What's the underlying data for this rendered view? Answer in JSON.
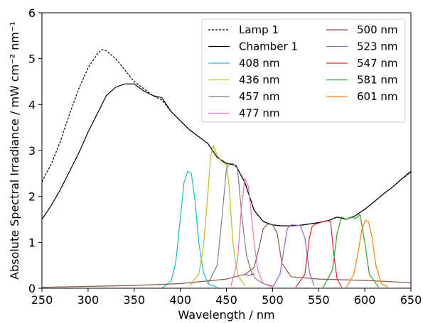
{
  "chart_data": {
    "type": "line",
    "xlabel": "Wavelength / nm",
    "ylabel": "Absolute Spectral Irradiance / mW cm⁻² nm⁻¹",
    "xlim": [
      250,
      650
    ],
    "ylim": [
      0,
      6
    ],
    "xticks": [
      250,
      300,
      350,
      400,
      450,
      500,
      550,
      600,
      650
    ],
    "yticks": [
      0,
      1,
      2,
      3,
      4,
      5,
      6
    ],
    "legend": {
      "placement": "top-right",
      "columns": 2
    },
    "series": [
      {
        "name": "Lamp 1",
        "color": "#000000",
        "dash": true,
        "x": [
          250,
          260,
          270,
          280,
          290,
          300,
          310,
          315,
          320,
          330,
          340,
          350,
          360,
          370,
          380,
          390,
          400,
          410,
          420,
          430,
          440,
          450,
          460,
          470,
          480,
          490,
          500,
          510,
          520,
          530,
          540,
          550,
          560,
          570,
          580,
          590,
          600,
          610,
          620,
          630,
          640,
          650
        ],
        "y": [
          2.32,
          2.7,
          3.2,
          3.8,
          4.35,
          4.8,
          5.1,
          5.2,
          5.17,
          5.0,
          4.75,
          4.5,
          4.35,
          4.2,
          4.1,
          3.85,
          3.65,
          3.45,
          3.3,
          3.15,
          2.85,
          2.72,
          2.68,
          2.3,
          1.7,
          1.45,
          1.38,
          1.36,
          1.36,
          1.37,
          1.4,
          1.43,
          1.47,
          1.55,
          1.5,
          1.58,
          1.72,
          1.88,
          2.05,
          2.2,
          2.38,
          2.52
        ]
      },
      {
        "name": "Chamber 1",
        "color": "#000000",
        "dash": false,
        "x": [
          250,
          260,
          270,
          280,
          290,
          300,
          310,
          320,
          330,
          340,
          350,
          360,
          370,
          380,
          390,
          400,
          410,
          420,
          430,
          440,
          450,
          460,
          470,
          480,
          490,
          500,
          510,
          520,
          530,
          540,
          550,
          560,
          570,
          580,
          590,
          600,
          610,
          620,
          630,
          640,
          650
        ],
        "y": [
          1.5,
          1.8,
          2.15,
          2.55,
          2.95,
          3.4,
          3.8,
          4.2,
          4.38,
          4.45,
          4.45,
          4.3,
          4.2,
          4.15,
          3.85,
          3.65,
          3.45,
          3.3,
          3.15,
          2.85,
          2.72,
          2.68,
          2.3,
          1.7,
          1.45,
          1.38,
          1.36,
          1.36,
          1.37,
          1.4,
          1.43,
          1.47,
          1.55,
          1.5,
          1.58,
          1.72,
          1.88,
          2.05,
          2.2,
          2.38,
          2.55
        ]
      },
      {
        "name": "408 nm",
        "color": "#17becf",
        "x": [
          380,
          390,
          395,
          400,
          404,
          408,
          412,
          416,
          420,
          425,
          430,
          440
        ],
        "y": [
          0.0,
          0.15,
          0.55,
          1.5,
          2.3,
          2.55,
          2.5,
          1.9,
          1.0,
          0.35,
          0.1,
          0.02
        ]
      },
      {
        "name": "436 nm",
        "color": "#bcbd22",
        "x": [
          410,
          420,
          425,
          430,
          433,
          436,
          440,
          445,
          450,
          453,
          457,
          462,
          470
        ],
        "y": [
          0.05,
          0.3,
          0.9,
          2.1,
          2.9,
          3.1,
          2.9,
          2.75,
          2.7,
          2.2,
          1.0,
          0.3,
          0.05
        ]
      },
      {
        "name": "457 nm",
        "color": "#7f7f7f",
        "x": [
          430,
          440,
          445,
          450,
          453,
          457,
          462,
          467,
          472,
          477,
          482,
          490,
          500
        ],
        "y": [
          0.1,
          0.5,
          1.5,
          2.6,
          2.72,
          2.72,
          2.6,
          1.5,
          0.7,
          0.35,
          0.2,
          0.1,
          0.05
        ]
      },
      {
        "name": "477 nm",
        "color": "#e377c2",
        "x": [
          455,
          462,
          466,
          470,
          474,
          477,
          480,
          484,
          490,
          500
        ],
        "y": [
          0.05,
          0.6,
          1.7,
          2.4,
          2.2,
          1.6,
          1.0,
          0.4,
          0.1,
          0.02
        ]
      },
      {
        "name": "500 nm",
        "color": "#8c564b",
        "x": [
          250,
          300,
          350,
          400,
          450,
          470,
          480,
          485,
          490,
          495,
          500,
          505,
          510,
          520,
          550,
          600,
          650
        ],
        "y": [
          0.02,
          0.04,
          0.06,
          0.1,
          0.2,
          0.3,
          0.45,
          0.85,
          1.3,
          1.4,
          1.38,
          1.2,
          0.55,
          0.25,
          0.2,
          0.17,
          0.12
        ]
      },
      {
        "name": "523 nm",
        "color": "#9467bd",
        "x": [
          500,
          508,
          512,
          516,
          520,
          523,
          526,
          530,
          535,
          540,
          545
        ],
        "y": [
          0.02,
          0.3,
          0.8,
          1.3,
          1.38,
          1.38,
          1.37,
          1.37,
          1.1,
          0.35,
          0.05
        ]
      },
      {
        "name": "547 nm",
        "color": "#d62728",
        "x": [
          525,
          535,
          540,
          543,
          547,
          552,
          558,
          563,
          566,
          570,
          575
        ],
        "y": [
          0.02,
          0.3,
          1.1,
          1.35,
          1.4,
          1.43,
          1.47,
          1.45,
          0.8,
          0.2,
          0.02
        ]
      },
      {
        "name": "581 nm",
        "color": "#2ca02c",
        "x": [
          555,
          565,
          570,
          575,
          580,
          585,
          590,
          595,
          600,
          605,
          615
        ],
        "y": [
          0.02,
          0.4,
          1.2,
          1.55,
          1.5,
          1.55,
          1.52,
          1.6,
          1.0,
          0.3,
          0.02
        ]
      },
      {
        "name": "601 nm",
        "color": "#ff7f0e",
        "x": [
          580,
          588,
          593,
          597,
          601,
          604,
          608,
          612,
          618,
          625
        ],
        "y": [
          0.02,
          0.3,
          0.8,
          1.3,
          1.48,
          1.45,
          1.1,
          0.5,
          0.1,
          0.02
        ]
      },
      {
        "name": "",
        "color": "#8c564b",
        "x": [
          470,
          475,
          480
        ],
        "y": [
          0.3,
          0.28,
          0.32
        ]
      }
    ]
  }
}
